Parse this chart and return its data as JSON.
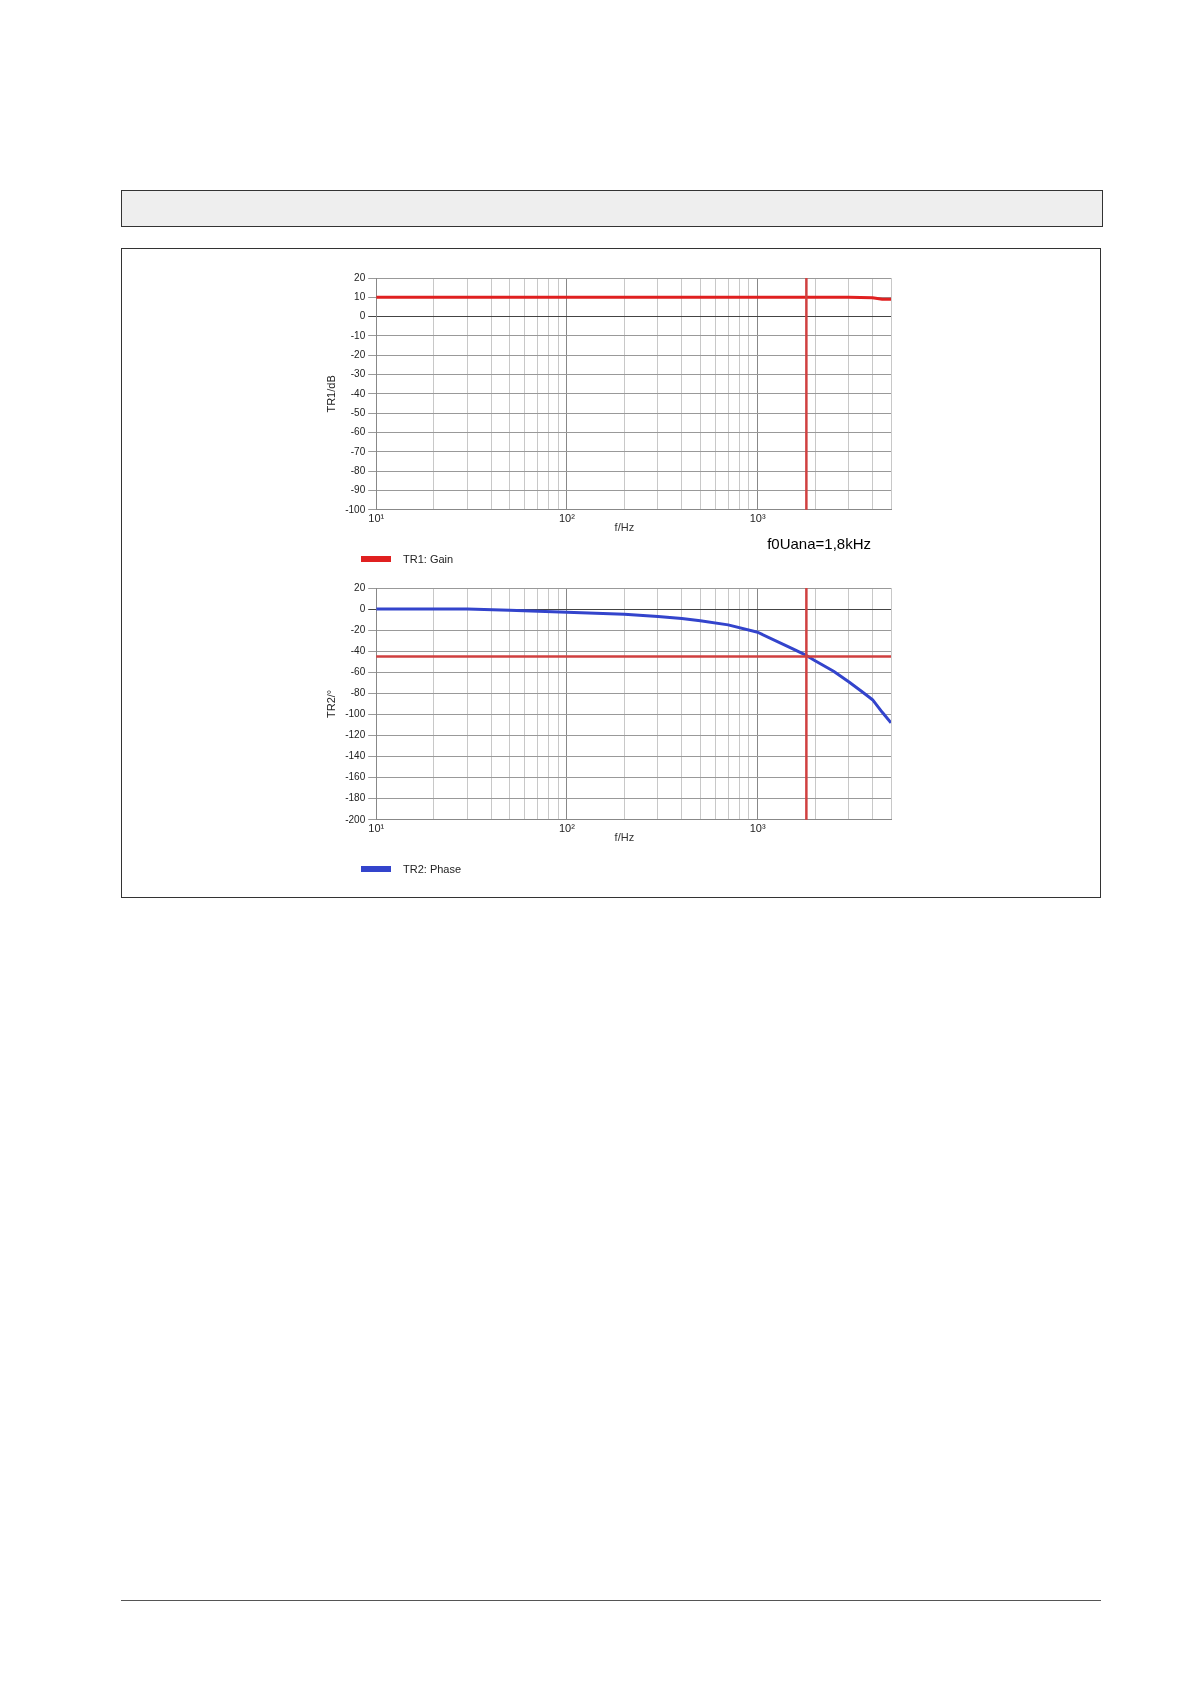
{
  "chart_data": [
    {
      "type": "line",
      "xlabel": "f/Hz",
      "ylabel": "TR1/dB",
      "log": "x",
      "grid": true,
      "legend": "bottom left",
      "marker": "none",
      "line_style": "solid",
      "series": [
        {
          "name": "TR1: Gain",
          "color": "#e02020",
          "x": [
            10,
            100,
            1000,
            3000,
            4000,
            4500,
            5000
          ],
          "values": [
            10,
            10,
            10,
            10,
            9.8,
            9,
            9
          ]
        }
      ],
      "xlim": [
        10,
        5000
      ],
      "xticks": [
        {
          "value": 10,
          "label": "10¹"
        },
        {
          "value": 20,
          "label": null
        },
        {
          "value": 30,
          "label": null
        },
        {
          "value": 40,
          "label": null
        },
        {
          "value": 50,
          "label": null
        },
        {
          "value": 60,
          "label": null
        },
        {
          "value": 70,
          "label": null
        },
        {
          "value": 80,
          "label": null
        },
        {
          "value": 90,
          "label": null
        },
        {
          "value": 100,
          "label": "10²"
        },
        {
          "value": 200,
          "label": null
        },
        {
          "value": 300,
          "label": null
        },
        {
          "value": 400,
          "label": null
        },
        {
          "value": 500,
          "label": null
        },
        {
          "value": 600,
          "label": null
        },
        {
          "value": 700,
          "label": null
        },
        {
          "value": 800,
          "label": null
        },
        {
          "value": 900,
          "label": null
        },
        {
          "value": 1000,
          "label": "10³"
        },
        {
          "value": 2000,
          "label": null
        },
        {
          "value": 3000,
          "label": null
        },
        {
          "value": 4000,
          "label": null
        },
        {
          "value": 5000,
          "label": null
        }
      ],
      "ylim": [
        -100,
        20
      ],
      "yticks": [
        -100,
        -90,
        -80,
        -70,
        -60,
        -50,
        -40,
        -30,
        -20,
        -10,
        0,
        10,
        20
      ],
      "ref_lines": [
        {
          "axis": "x",
          "value": 1800,
          "color": "#d04040"
        }
      ],
      "annotations": [
        "f0Uana=1,8kHz"
      ]
    },
    {
      "type": "line",
      "xlabel": "f/Hz",
      "ylabel": "TR2/°",
      "log": "x",
      "grid": true,
      "legend": "bottom left",
      "marker": "none",
      "line_style": "solid",
      "series": [
        {
          "name": "TR2: Phase",
          "color": "#3344cc",
          "x": [
            10,
            30,
            50,
            100,
            200,
            300,
            400,
            500,
            700,
            1000,
            1500,
            1800,
            2000,
            2500,
            3000,
            3500,
            4000,
            4500,
            5000
          ],
          "values": [
            0,
            0,
            -1,
            -3,
            -5,
            -7,
            -9,
            -11,
            -15,
            -22,
            -37,
            -44,
            -49,
            -59,
            -69,
            -78,
            -86,
            -98,
            -108
          ]
        }
      ],
      "xlim": [
        10,
        5000
      ],
      "xticks": [
        {
          "value": 10,
          "label": "10¹"
        },
        {
          "value": 20,
          "label": null
        },
        {
          "value": 30,
          "label": null
        },
        {
          "value": 40,
          "label": null
        },
        {
          "value": 50,
          "label": null
        },
        {
          "value": 60,
          "label": null
        },
        {
          "value": 70,
          "label": null
        },
        {
          "value": 80,
          "label": null
        },
        {
          "value": 90,
          "label": null
        },
        {
          "value": 100,
          "label": "10²"
        },
        {
          "value": 200,
          "label": null
        },
        {
          "value": 300,
          "label": null
        },
        {
          "value": 400,
          "label": null
        },
        {
          "value": 500,
          "label": null
        },
        {
          "value": 600,
          "label": null
        },
        {
          "value": 700,
          "label": null
        },
        {
          "value": 800,
          "label": null
        },
        {
          "value": 900,
          "label": null
        },
        {
          "value": 1000,
          "label": "10³"
        },
        {
          "value": 2000,
          "label": null
        },
        {
          "value": 3000,
          "label": null
        },
        {
          "value": 4000,
          "label": null
        },
        {
          "value": 5000,
          "label": null
        }
      ],
      "ylim": [
        -200,
        20
      ],
      "yticks": [
        -200,
        -180,
        -160,
        -140,
        -120,
        -100,
        -80,
        -60,
        -40,
        -20,
        0,
        20
      ],
      "ref_lines": [
        {
          "axis": "x",
          "value": 1800,
          "color": "#d04040"
        },
        {
          "axis": "y",
          "value": -45,
          "color": "#d04040"
        }
      ]
    }
  ]
}
